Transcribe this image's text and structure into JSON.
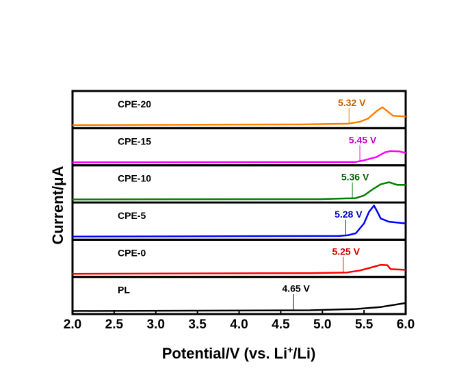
{
  "chart_data": {
    "type": "line",
    "xlabel": "Potential/V (vs. Li",
    "xlabel_sup": "+",
    "xlabel_end": "/Li)",
    "ylabel": "Current/μA",
    "xlim": [
      2.0,
      6.0
    ],
    "xticks": [
      "2.0",
      "2.5",
      "3.0",
      "3.5",
      "4.0",
      "4.5",
      "5.0",
      "5.5",
      "6.0"
    ],
    "stacked_panels": true,
    "y_units": "arbitrary, normalized per panel",
    "series": [
      {
        "name": "CPE-20",
        "color": "#ff8000",
        "onset": 5.32,
        "onset_label": "5.32 V",
        "label_color": "#c06000",
        "x": [
          2.0,
          4.75,
          5.3,
          5.45,
          5.55,
          5.65,
          5.72,
          5.78,
          5.85,
          6.0
        ],
        "y": [
          0,
          0.02,
          0.04,
          0.1,
          0.2,
          0.42,
          0.54,
          0.42,
          0.28,
          0.26
        ]
      },
      {
        "name": "CPE-15",
        "color": "#ff00ff",
        "onset": 5.45,
        "onset_label": "5.45 V",
        "label_color": "#c000c0",
        "x": [
          2.0,
          5.4,
          5.5,
          5.65,
          5.75,
          5.82,
          5.92,
          6.0
        ],
        "y": [
          0,
          0.01,
          0.06,
          0.16,
          0.3,
          0.34,
          0.33,
          0.28
        ]
      },
      {
        "name": "CPE-10",
        "color": "#008000",
        "onset": 5.36,
        "onset_label": "5.36 V",
        "label_color": "#006000",
        "x": [
          2.0,
          5.0,
          5.4,
          5.5,
          5.6,
          5.7,
          5.8,
          5.9,
          6.0
        ],
        "y": [
          0,
          0.01,
          0.04,
          0.12,
          0.3,
          0.46,
          0.52,
          0.44,
          0.44
        ]
      },
      {
        "name": "CPE-5",
        "color": "#0000ff",
        "onset": 5.28,
        "onset_label": "5.28 V",
        "label_color": "#0000c0",
        "x": [
          2.0,
          5.2,
          5.3,
          5.4,
          5.5,
          5.56,
          5.62,
          5.66,
          5.7,
          5.8,
          6.0
        ],
        "y": [
          0,
          0.02,
          0.04,
          0.1,
          0.4,
          0.75,
          0.94,
          0.75,
          0.55,
          0.45,
          0.4
        ]
      },
      {
        "name": "CPE-0",
        "color": "#ff0000",
        "onset": 5.25,
        "onset_label": "5.25 V",
        "label_color": "#d00000",
        "x": [
          2.0,
          4.85,
          5.3,
          5.45,
          5.6,
          5.7,
          5.78,
          5.82,
          6.0
        ],
        "y": [
          0,
          0.02,
          0.04,
          0.1,
          0.2,
          0.27,
          0.26,
          0.14,
          0.12
        ]
      },
      {
        "name": "PL",
        "color": "#000000",
        "onset": 4.65,
        "onset_label": "4.65 V",
        "label_color": "#000000",
        "x": [
          2.0,
          4.85,
          5.4,
          5.7,
          6.0
        ],
        "y": [
          0,
          0.02,
          0.06,
          0.12,
          0.24
        ]
      }
    ]
  }
}
